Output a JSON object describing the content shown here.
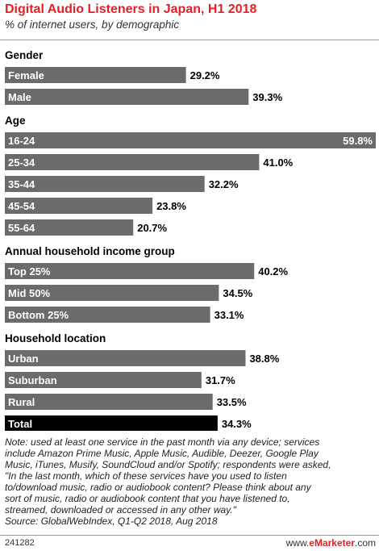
{
  "chart_data": {
    "type": "bar",
    "orientation": "horizontal",
    "title": "Digital Audio Listeners in Japan, H1 2018",
    "subtitle": "% of internet users, by demographic",
    "value_suffix": "%",
    "xlim": [
      0,
      59.8
    ],
    "groups": [
      {
        "name": "Gender",
        "items": [
          {
            "label": "Female",
            "value": 29.2,
            "value_label": "29.2%"
          },
          {
            "label": "Male",
            "value": 39.3,
            "value_label": "39.3%"
          }
        ]
      },
      {
        "name": "Age",
        "items": [
          {
            "label": "16-24",
            "value": 59.8,
            "value_label": "59.8%"
          },
          {
            "label": "25-34",
            "value": 41.0,
            "value_label": "41.0%"
          },
          {
            "label": "35-44",
            "value": 32.2,
            "value_label": "32.2%"
          },
          {
            "label": "45-54",
            "value": 23.8,
            "value_label": "23.8%"
          },
          {
            "label": "55-64",
            "value": 20.7,
            "value_label": "20.7%"
          }
        ]
      },
      {
        "name": "Annual household income group",
        "items": [
          {
            "label": "Top 25%",
            "value": 40.2,
            "value_label": "40.2%"
          },
          {
            "label": "Mid 50%",
            "value": 34.5,
            "value_label": "34.5%"
          },
          {
            "label": "Bottom 25%",
            "value": 33.1,
            "value_label": "33.1%"
          }
        ]
      },
      {
        "name": "Household location",
        "items": [
          {
            "label": "Urban",
            "value": 38.8,
            "value_label": "38.8%"
          },
          {
            "label": "Suburban",
            "value": 31.7,
            "value_label": "31.7%"
          },
          {
            "label": "Rural",
            "value": 33.5,
            "value_label": "33.5%"
          }
        ]
      }
    ],
    "total": {
      "label": "Total",
      "value": 34.3,
      "value_label": "34.3%"
    }
  },
  "colors": {
    "bar": "#6b6b6b",
    "total_bar": "#000000",
    "title": "#e41f26"
  },
  "note_lines": [
    "Note: used at least one service in the past month via any device; services",
    "include Amazon Prime Music, Apple Music, Audible, Deezer, Google Play",
    "Music, iTunes, Musify, SoundCloud and/or Spotify; respondents were asked,",
    "\"In the last month, which of these services have you used to listen",
    "to/download music, radio or audiobook content? Please think about any",
    "sort of music, radio or audiobook content that you have listened to,",
    "streamed, downloaded or accessed in any other way.\"",
    "Source: GlobalWebIndex, Q1-Q2 2018, Aug 2018"
  ],
  "footer": {
    "chart_id": "241282",
    "brand_prefix": "www.",
    "brand_name": "eMarketer",
    "brand_suffix": ".com"
  }
}
